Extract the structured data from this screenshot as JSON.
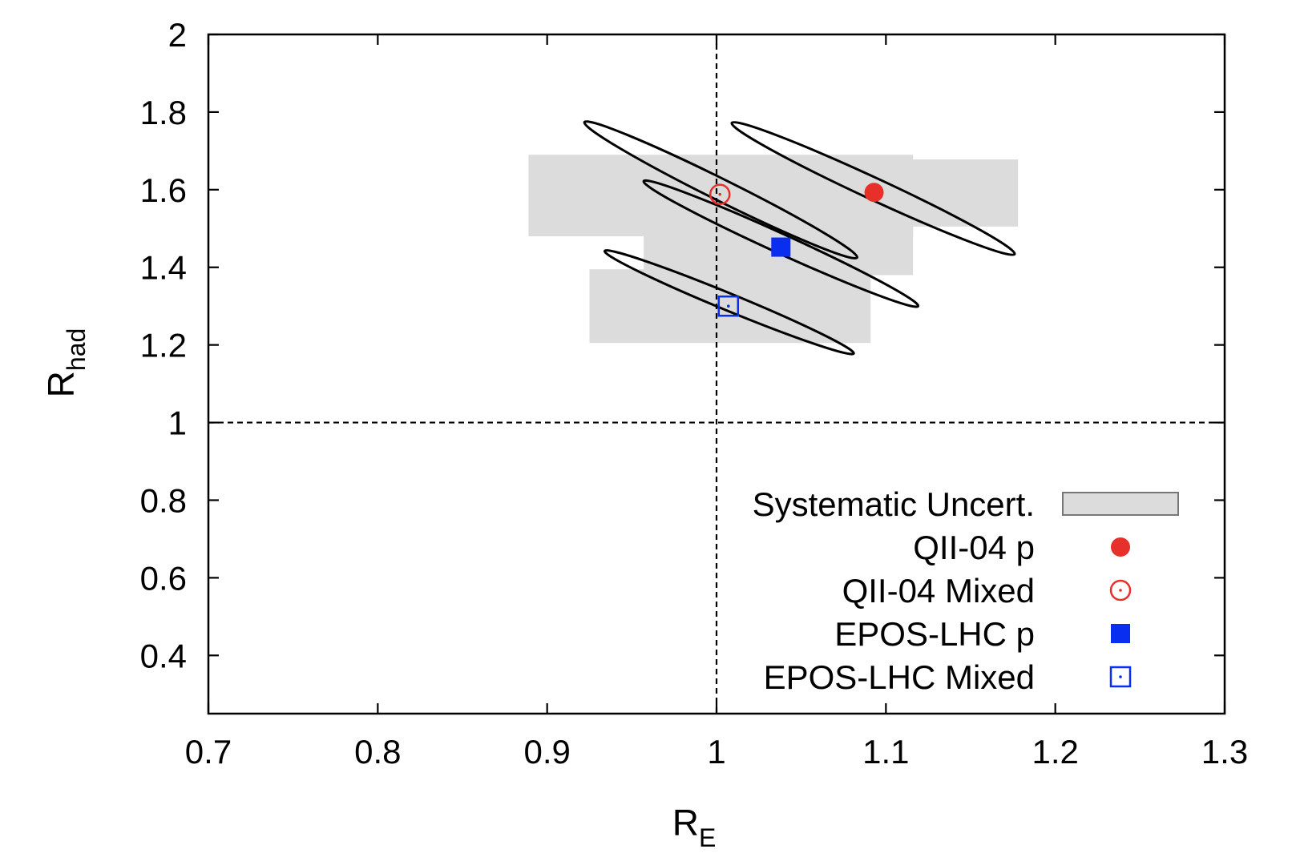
{
  "chart_data": {
    "type": "scatter",
    "xlabel": {
      "main": "R",
      "sub": "E"
    },
    "ylabel": {
      "main": "R",
      "sub": "had"
    },
    "xlim": [
      0.7,
      1.3
    ],
    "ylim": [
      0.25,
      2.0
    ],
    "xticks": [
      "0.7",
      "0.8",
      "0.9",
      "1",
      "1.1",
      "1.2",
      "1.3"
    ],
    "yticks": [
      "0.4",
      "0.6",
      "0.8",
      "1",
      "1.2",
      "1.4",
      "1.6",
      "1.8",
      "2"
    ],
    "reference_lines": {
      "x": 1.0,
      "y": 1.0,
      "style": "dashed"
    },
    "systematic_boxes": [
      {
        "series": "QII-04 p",
        "x": [
          0.953,
          1.178
        ],
        "y": [
          1.505,
          1.678
        ],
        "color": "#dcdcdc"
      },
      {
        "series": "QII-04 Mixed",
        "x": [
          0.889,
          1.116
        ],
        "y": [
          1.48,
          1.69
        ],
        "color": "#dcdcdc"
      },
      {
        "series": "EPOS-LHC p",
        "x": [
          0.957,
          1.116
        ],
        "y": [
          1.38,
          1.52
        ],
        "color": "#dcdcdc"
      },
      {
        "series": "EPOS-LHC Mixed",
        "x": [
          0.925,
          1.091
        ],
        "y": [
          1.205,
          1.395
        ],
        "color": "#dcdcdc"
      }
    ],
    "ellipses": [
      {
        "series": "QII-04 p",
        "center": [
          1.093,
          1.593
        ],
        "end_a": [
          1.009,
          1.772
        ],
        "end_b": [
          1.176,
          1.434
        ],
        "half_width": 0.028
      },
      {
        "series": "QII-04 Mixed",
        "center": [
          1.002,
          1.588
        ],
        "end_a": [
          0.922,
          1.774
        ],
        "end_b": [
          1.083,
          1.425
        ],
        "half_width": 0.028
      },
      {
        "series": "EPOS-LHC p",
        "center": [
          1.038,
          1.452
        ],
        "end_a": [
          0.957,
          1.622
        ],
        "end_b": [
          1.119,
          1.3
        ],
        "half_width": 0.025
      },
      {
        "series": "EPOS-LHC Mixed",
        "center": [
          1.007,
          1.3
        ],
        "end_a": [
          0.934,
          1.442
        ],
        "end_b": [
          1.081,
          1.178
        ],
        "half_width": 0.022
      }
    ],
    "series": [
      {
        "name": "QII-04 p",
        "marker": "filled-circle",
        "color": "#e8302a",
        "x": 1.093,
        "y": 1.593
      },
      {
        "name": "QII-04 Mixed",
        "marker": "open-circle-dot",
        "color": "#e8302a",
        "x": 1.002,
        "y": 1.588
      },
      {
        "name": "EPOS-LHC p",
        "marker": "filled-square",
        "color": "#0a2ef0",
        "x": 1.038,
        "y": 1.452
      },
      {
        "name": "EPOS-LHC Mixed",
        "marker": "open-square-dot",
        "color": "#0a2ef0",
        "x": 1.007,
        "y": 1.3
      }
    ],
    "legend": {
      "position": "bottom-right",
      "entries": [
        {
          "label": "Systematic Uncert.",
          "symbol": "box"
        },
        {
          "label": "QII-04 p",
          "symbol": "filled-circle"
        },
        {
          "label": "QII-04 Mixed",
          "symbol": "open-circle-dot"
        },
        {
          "label": "EPOS-LHC p",
          "symbol": "filled-square"
        },
        {
          "label": "EPOS-LHC Mixed",
          "symbol": "open-square-dot"
        }
      ]
    }
  }
}
